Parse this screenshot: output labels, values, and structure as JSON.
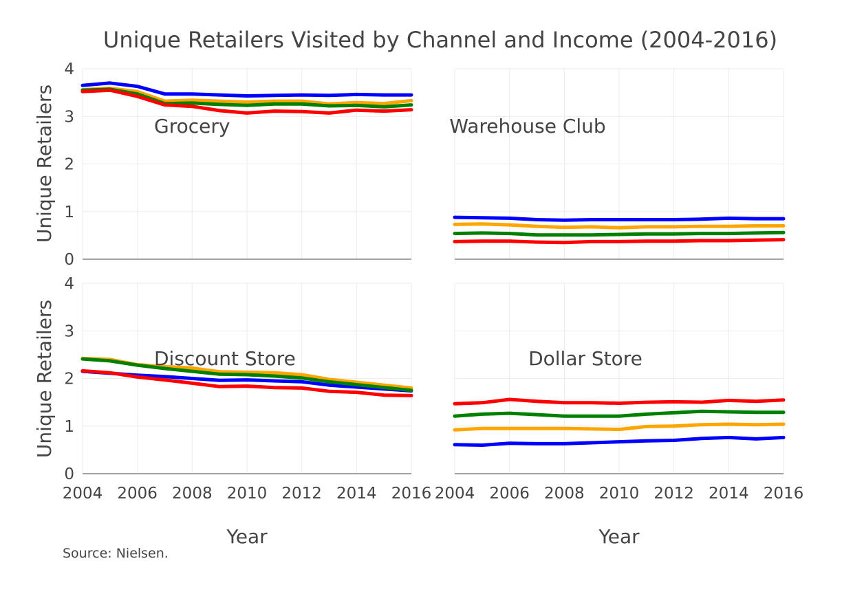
{
  "chart_data": {
    "type": "line",
    "title": "Unique Retailers Visited by Channel and Income (2004-2016)",
    "xlabel": "Year",
    "ylabel": "Unique Retailers",
    "source": "Source: Nielsen.",
    "xlim": [
      2004,
      2016
    ],
    "ylim": [
      0,
      4
    ],
    "x_ticks": [
      2004,
      2006,
      2008,
      2010,
      2012,
      2014,
      2016
    ],
    "y_ticks": [
      0,
      1,
      2,
      3,
      4
    ],
    "grid": true,
    "legend": "none",
    "x": [
      2004,
      2005,
      2006,
      2007,
      2008,
      2009,
      2010,
      2011,
      2012,
      2013,
      2014,
      2015,
      2016
    ],
    "series_colors": [
      "#0000ff",
      "#ffa500",
      "#008000",
      "#ff0000"
    ],
    "panels": [
      {
        "label": "Grocery",
        "series": [
          {
            "color": "#0000ff",
            "values": [
              3.65,
              3.7,
              3.63,
              3.47,
              3.47,
              3.45,
              3.43,
              3.44,
              3.45,
              3.44,
              3.46,
              3.45,
              3.45
            ]
          },
          {
            "color": "#ffa500",
            "values": [
              3.56,
              3.59,
              3.52,
              3.32,
              3.34,
              3.32,
              3.3,
              3.32,
              3.32,
              3.26,
              3.29,
              3.27,
              3.33
            ]
          },
          {
            "color": "#008000",
            "values": [
              3.55,
              3.57,
              3.47,
              3.27,
              3.28,
              3.25,
              3.23,
              3.26,
              3.26,
              3.22,
              3.23,
              3.2,
              3.24
            ]
          },
          {
            "color": "#ff0000",
            "values": [
              3.52,
              3.55,
              3.42,
              3.24,
              3.21,
              3.12,
              3.07,
              3.11,
              3.1,
              3.07,
              3.13,
              3.11,
              3.14
            ]
          }
        ]
      },
      {
        "label": "Warehouse Club",
        "series": [
          {
            "color": "#0000ff",
            "values": [
              0.88,
              0.87,
              0.86,
              0.83,
              0.82,
              0.83,
              0.83,
              0.83,
              0.83,
              0.84,
              0.86,
              0.85,
              0.85
            ]
          },
          {
            "color": "#ffa500",
            "values": [
              0.73,
              0.74,
              0.72,
              0.69,
              0.67,
              0.68,
              0.66,
              0.68,
              0.68,
              0.69,
              0.69,
              0.7,
              0.7
            ]
          },
          {
            "color": "#008000",
            "values": [
              0.54,
              0.55,
              0.54,
              0.51,
              0.51,
              0.51,
              0.52,
              0.53,
              0.53,
              0.54,
              0.54,
              0.55,
              0.56
            ]
          },
          {
            "color": "#ff0000",
            "values": [
              0.37,
              0.38,
              0.38,
              0.36,
              0.35,
              0.37,
              0.37,
              0.38,
              0.38,
              0.39,
              0.39,
              0.4,
              0.41
            ]
          }
        ]
      },
      {
        "label": "Discount Store",
        "series": [
          {
            "color": "#0000ff",
            "values": [
              2.15,
              2.11,
              2.07,
              2.04,
              2.0,
              1.96,
              1.97,
              1.95,
              1.93,
              1.86,
              1.82,
              1.78,
              1.74
            ]
          },
          {
            "color": "#ffa500",
            "values": [
              2.42,
              2.4,
              2.29,
              2.25,
              2.22,
              2.14,
              2.13,
              2.12,
              2.08,
              1.98,
              1.92,
              1.86,
              1.8
            ]
          },
          {
            "color": "#008000",
            "values": [
              2.41,
              2.37,
              2.28,
              2.21,
              2.15,
              2.09,
              2.08,
              2.05,
              2.01,
              1.93,
              1.87,
              1.81,
              1.75
            ]
          },
          {
            "color": "#ff0000",
            "values": [
              2.16,
              2.12,
              2.03,
              1.97,
              1.9,
              1.83,
              1.84,
              1.81,
              1.8,
              1.73,
              1.71,
              1.65,
              1.64
            ]
          }
        ]
      },
      {
        "label": "Dollar Store",
        "series": [
          {
            "color": "#0000ff",
            "values": [
              0.61,
              0.6,
              0.64,
              0.63,
              0.63,
              0.65,
              0.67,
              0.69,
              0.7,
              0.74,
              0.76,
              0.73,
              0.76
            ]
          },
          {
            "color": "#ffa500",
            "values": [
              0.92,
              0.95,
              0.95,
              0.95,
              0.95,
              0.94,
              0.93,
              0.99,
              1.0,
              1.03,
              1.04,
              1.03,
              1.04
            ]
          },
          {
            "color": "#008000",
            "values": [
              1.21,
              1.25,
              1.27,
              1.24,
              1.21,
              1.21,
              1.21,
              1.25,
              1.28,
              1.31,
              1.3,
              1.29,
              1.29
            ]
          },
          {
            "color": "#ff0000",
            "values": [
              1.47,
              1.49,
              1.56,
              1.52,
              1.49,
              1.49,
              1.48,
              1.5,
              1.51,
              1.5,
              1.54,
              1.52,
              1.55
            ]
          }
        ]
      }
    ]
  }
}
